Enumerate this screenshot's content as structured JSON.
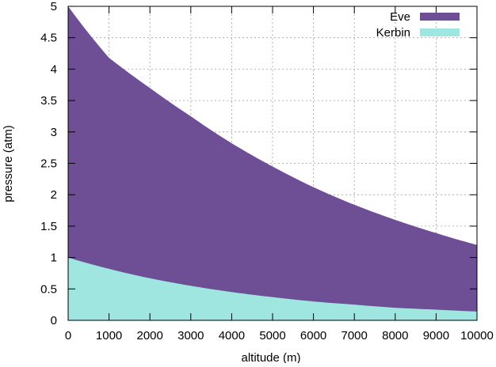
{
  "chart_data": {
    "type": "area",
    "title": "",
    "xlabel": "altitude (m)",
    "ylabel": "pressure (atm)",
    "xlim": [
      0,
      10000
    ],
    "ylim": [
      0,
      5
    ],
    "x_ticks": [
      0,
      1000,
      2000,
      3000,
      4000,
      5000,
      6000,
      7000,
      8000,
      9000,
      10000
    ],
    "x_tick_labels": [
      "0",
      "1000",
      "2000",
      "3000",
      "4000",
      "5000",
      "6000",
      "7000",
      "8000",
      "9000",
      "10000"
    ],
    "y_ticks": [
      0,
      0.5,
      1,
      1.5,
      2,
      2.5,
      3,
      3.5,
      4,
      4.5,
      5
    ],
    "y_tick_labels": [
      "0",
      "0.5",
      "1",
      "1.5",
      "2",
      "2.5",
      "3",
      "3.5",
      "4",
      "4.5",
      "5"
    ],
    "grid": true,
    "legend_position": "top-right",
    "x": [
      0,
      1000,
      2000,
      3000,
      4000,
      5000,
      6000,
      7000,
      8000,
      9000,
      10000
    ],
    "series": [
      {
        "name": "Eve",
        "color": "#6e4f95",
        "values": [
          5.0,
          4.18,
          3.7,
          3.25,
          2.82,
          2.45,
          2.12,
          1.84,
          1.6,
          1.39,
          1.2
        ]
      },
      {
        "name": "Kerbin",
        "color": "#a0e6e0",
        "values": [
          1.0,
          0.82,
          0.67,
          0.55,
          0.45,
          0.37,
          0.3,
          0.25,
          0.2,
          0.17,
          0.14
        ]
      }
    ]
  }
}
